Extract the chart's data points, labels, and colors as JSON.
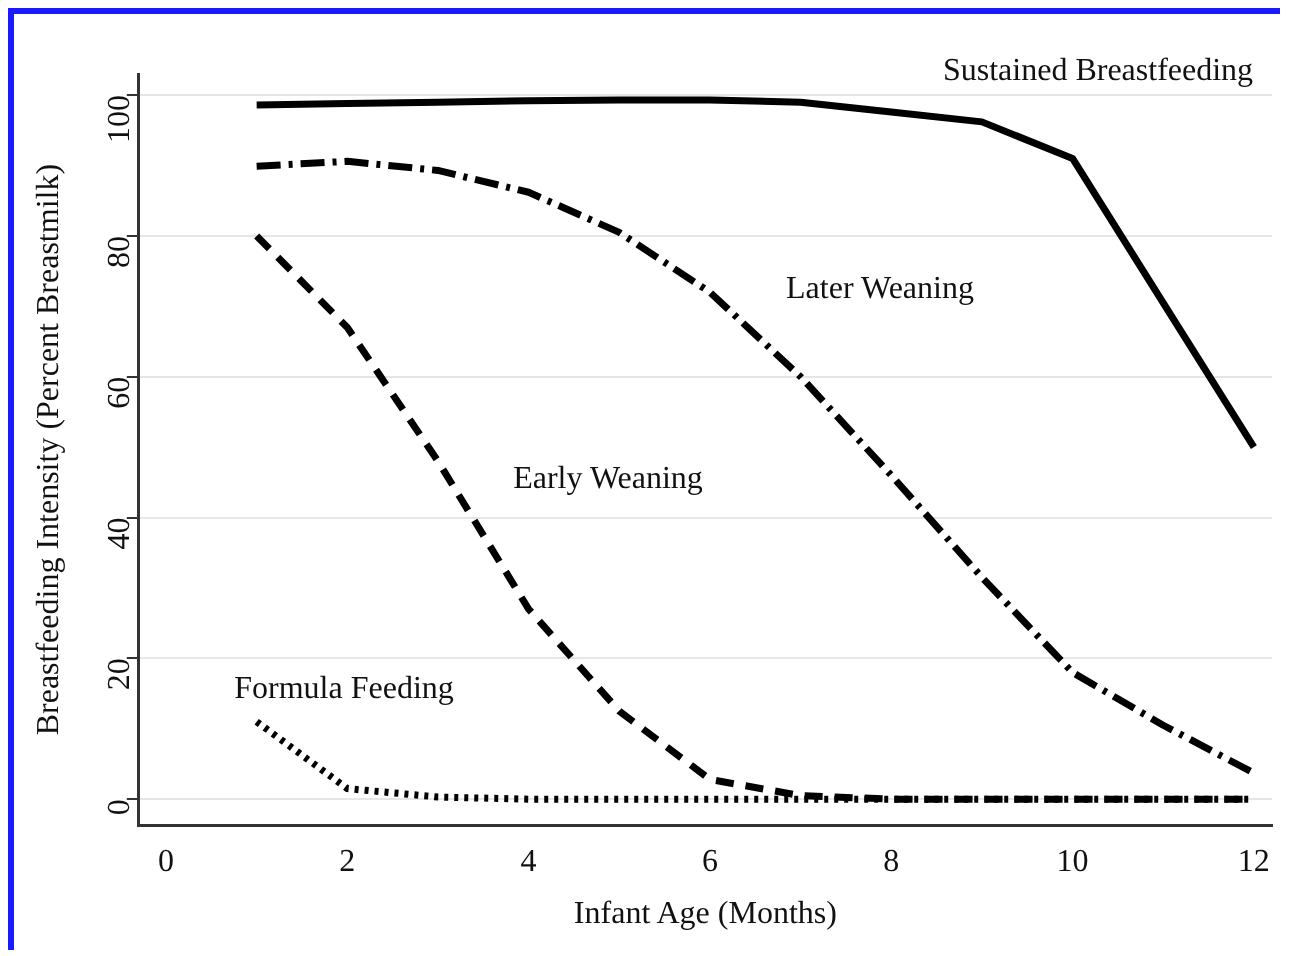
{
  "chart_data": {
    "type": "line",
    "xlabel": "Infant Age (Months)",
    "ylabel": "Breastfeeding Intensity (Percent Breastmilk)",
    "x": [
      1,
      2,
      3,
      4,
      5,
      6,
      7,
      8,
      9,
      10,
      11,
      12
    ],
    "series": [
      {
        "color": "#000000",
        "line_style": "solid",
        "values": [
          98.6,
          98.8,
          99,
          99.2,
          99.3,
          99.3,
          99,
          97.6,
          96.2,
          91,
          70.5,
          50
        ]
      },
      {
        "color": "#000000",
        "line_style": "dashdot",
        "values": [
          89.9,
          90.6,
          89.3,
          86.2,
          80.5,
          72,
          60,
          46,
          31.5,
          18,
          10.5,
          3.7
        ]
      },
      {
        "color": "#000000",
        "line_style": "dashed",
        "values": [
          80,
          67,
          48,
          27,
          12.5,
          2.8,
          0.5,
          0,
          0,
          0,
          0,
          0
        ]
      },
      {
        "color": "#000000",
        "line_style": "dotted",
        "values": [
          11,
          1.5,
          0.3,
          0,
          0,
          0,
          0,
          0,
          0,
          0,
          0,
          0
        ]
      }
    ],
    "xlim": [
      -0.3,
      12.2
    ],
    "ylim": [
      -3.7,
      103
    ],
    "xticks": [
      0,
      2,
      4,
      6,
      8,
      10,
      12
    ],
    "yticks": [
      0,
      20,
      40,
      60,
      80,
      100
    ],
    "grid": "y",
    "legend": false,
    "marker": "none",
    "annotations": [
      "Sustained Breastfeeding",
      "Later Weaning",
      "Early Weaning",
      "Formula Feeding"
    ]
  }
}
